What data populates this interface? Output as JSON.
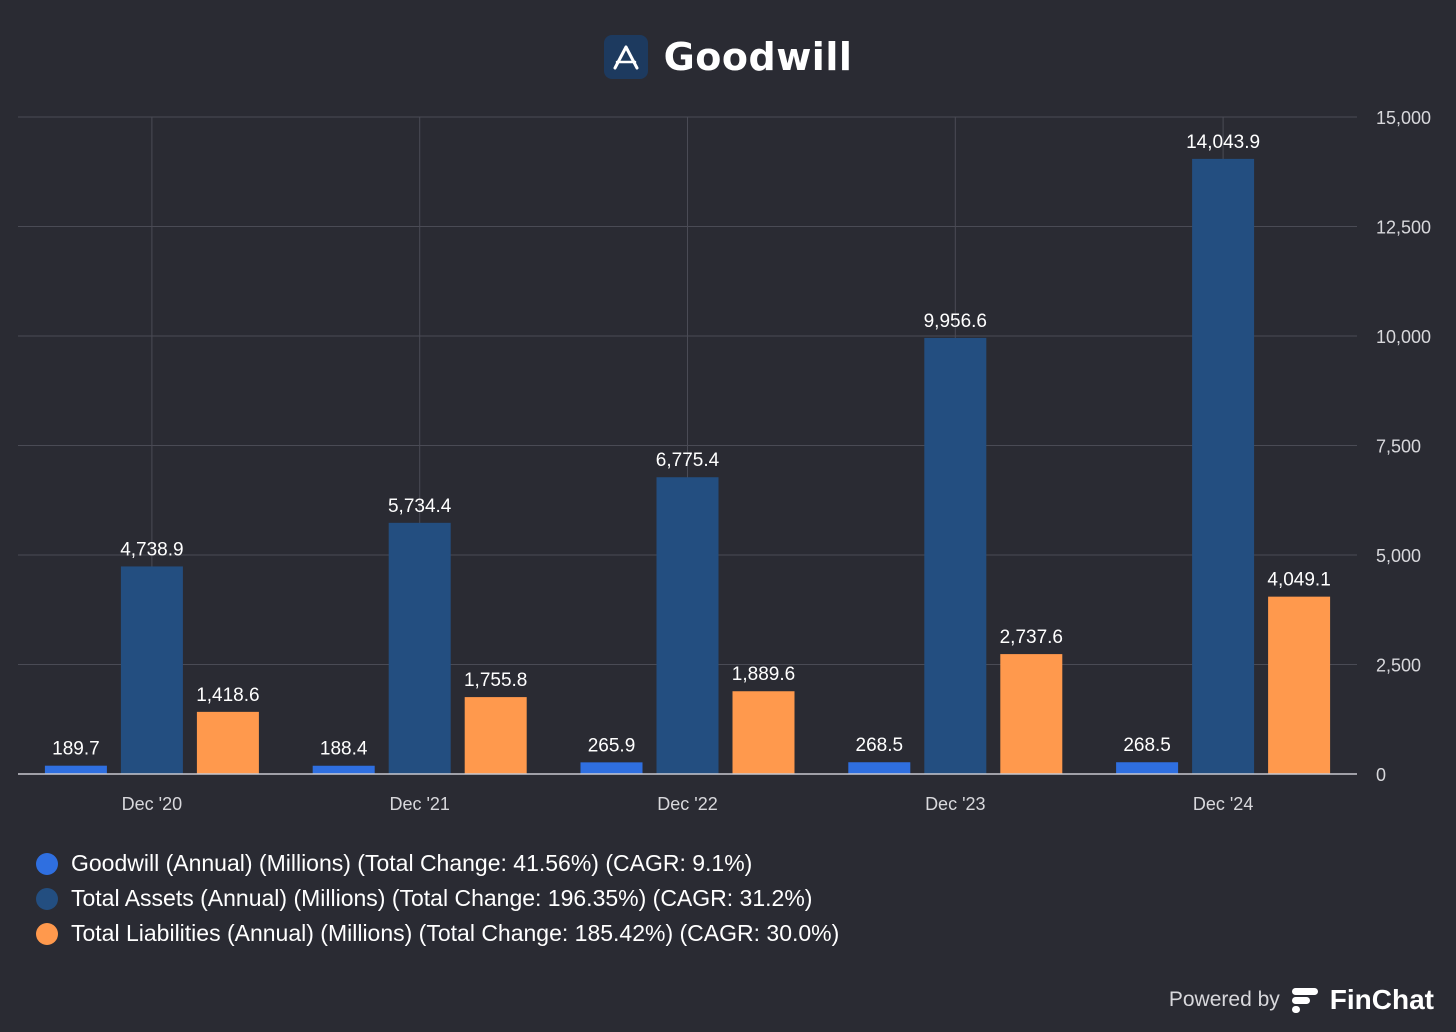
{
  "title": "Goodwill",
  "footer": {
    "powered_by": "Powered by",
    "brand": "FinChat"
  },
  "colors": {
    "background": "#2a2b33",
    "goodwill": "#2f6fe0",
    "total_assets": "#234e80",
    "total_liabilities": "#ff994d",
    "grid": "#4a4b55"
  },
  "icons": {
    "title_logo": "stylized-a-logo-icon",
    "brand_logo": "finchat-logo-icon"
  },
  "chart_data": {
    "type": "bar",
    "categories": [
      "Dec '20",
      "Dec '21",
      "Dec '22",
      "Dec '23",
      "Dec '24"
    ],
    "series": [
      {
        "name": "Goodwill (Annual) (Millions) (Total Change: 41.56%) (CAGR: 9.1%)",
        "values": [
          189.7,
          188.4,
          265.9,
          268.5,
          268.5
        ],
        "labels": [
          "189.7",
          "188.4",
          "265.9",
          "268.5",
          "268.5"
        ],
        "color": "#2f6fe0"
      },
      {
        "name": "Total Assets (Annual) (Millions) (Total Change: 196.35%) (CAGR: 31.2%)",
        "values": [
          4738.9,
          5734.4,
          6775.4,
          9956.6,
          14043.9
        ],
        "labels": [
          "4,738.9",
          "5,734.4",
          "6,775.4",
          "9,956.6",
          "14,043.9"
        ],
        "color": "#234e80"
      },
      {
        "name": "Total Liabilities (Annual) (Millions) (Total Change: 185.42%) (CAGR: 30.0%)",
        "values": [
          1418.6,
          1755.8,
          1889.6,
          2737.6,
          4049.1
        ],
        "labels": [
          "1,418.6",
          "1,755.8",
          "1,889.6",
          "2,737.6",
          "4,049.1"
        ],
        "color": "#ff994d"
      }
    ],
    "y_ticks": [
      0,
      2500,
      5000,
      7500,
      10000,
      12500,
      15000
    ],
    "y_tick_labels": [
      "0",
      "2,500",
      "5,000",
      "7,500",
      "10,000",
      "12,500",
      "15,000"
    ],
    "ylim": [
      0,
      15000
    ],
    "y_axis_position": "right",
    "grid": true,
    "legend_position": "bottom-left"
  }
}
